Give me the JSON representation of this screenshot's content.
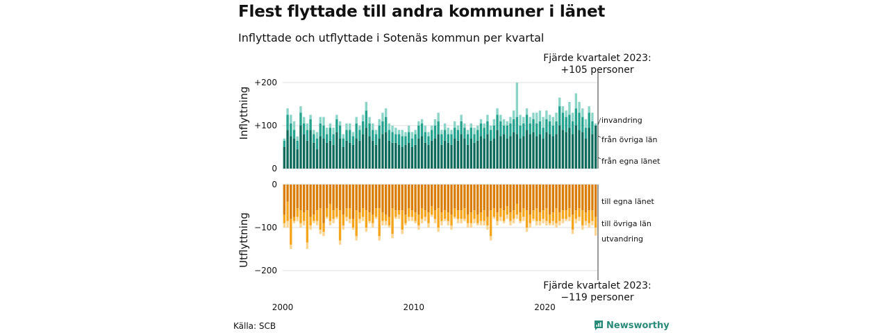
{
  "title": "Flest flyttade till andra kommuner i länet",
  "subtitle": "Inflyttade och utflyttade i Sotenäs kommun per kvartal",
  "annotation_top": {
    "line1": "Fjärde kvartalet 2023:",
    "line2": "+105 personer"
  },
  "annotation_bottom": {
    "line1": "Fjärde kvartalet 2023:",
    "line2": "−119 personer"
  },
  "source": "Källa: SCB",
  "brand": "Newsworthy",
  "colors": {
    "in_own": "#0e6b5c",
    "in_other": "#25a38f",
    "in_immig": "#8bd4c8",
    "out_own": "#d97d06",
    "out_other": "#f4a51c",
    "out_emig": "#fcd492",
    "grid": "#dddddd",
    "axis": "#333333"
  },
  "chart_data": {
    "type": "bar",
    "stacked": true,
    "x_start": "2000 Q1",
    "x_end": "2023 Q4",
    "x_tick_labels": [
      "2000",
      "2010",
      "2020"
    ],
    "upper": {
      "ylabel": "Inflyttning",
      "ylim": [
        0,
        200
      ],
      "ticks": [
        "0",
        "+100",
        "+200"
      ],
      "series": [
        {
          "name": "från egna länet",
          "color": "#0e6b5c",
          "values": [
            50,
            90,
            75,
            70,
            45,
            100,
            80,
            65,
            90,
            60,
            45,
            75,
            70,
            60,
            65,
            55,
            85,
            70,
            50,
            65,
            60,
            55,
            70,
            65,
            80,
            95,
            75,
            65,
            55,
            70,
            80,
            85,
            65,
            60,
            60,
            55,
            50,
            55,
            60,
            50,
            55,
            70,
            75,
            60,
            55,
            65,
            70,
            80,
            55,
            65,
            60,
            55,
            70,
            65,
            80,
            70,
            55,
            70,
            60,
            65,
            75,
            70,
            80,
            65,
            70,
            90,
            75,
            80,
            70,
            75,
            85,
            80,
            70,
            75,
            90,
            80,
            85,
            75,
            80,
            70,
            85,
            80,
            75,
            80,
            100,
            90,
            85,
            95,
            80,
            100,
            90,
            85,
            70,
            95,
            80,
            100
          ]
        },
        {
          "name": "från övriga län",
          "color": "#25a38f",
          "values": [
            15,
            35,
            30,
            20,
            20,
            30,
            25,
            25,
            25,
            20,
            25,
            30,
            30,
            20,
            30,
            25,
            30,
            30,
            20,
            25,
            30,
            20,
            35,
            25,
            30,
            40,
            30,
            25,
            25,
            30,
            30,
            35,
            25,
            25,
            20,
            25,
            25,
            20,
            25,
            20,
            25,
            30,
            30,
            25,
            20,
            25,
            30,
            30,
            25,
            25,
            20,
            25,
            25,
            25,
            30,
            25,
            25,
            25,
            20,
            25,
            30,
            25,
            30,
            25,
            30,
            35,
            35,
            20,
            30,
            30,
            30,
            40,
            30,
            30,
            35,
            25,
            30,
            30,
            30,
            25,
            30,
            30,
            25,
            30,
            45,
            40,
            35,
            30,
            30,
            40,
            40,
            35,
            25,
            35,
            30,
            0
          ]
        },
        {
          "name": "invandring",
          "color": "#8bd4c8",
          "values": [
            5,
            15,
            20,
            20,
            10,
            15,
            15,
            15,
            10,
            10,
            15,
            15,
            20,
            15,
            10,
            15,
            10,
            10,
            10,
            15,
            15,
            10,
            15,
            10,
            15,
            20,
            15,
            15,
            10,
            15,
            20,
            20,
            15,
            15,
            15,
            10,
            15,
            10,
            15,
            15,
            10,
            10,
            10,
            15,
            10,
            10,
            15,
            20,
            10,
            15,
            15,
            10,
            15,
            10,
            15,
            10,
            10,
            10,
            15,
            10,
            10,
            10,
            15,
            10,
            15,
            15,
            15,
            15,
            10,
            15,
            20,
            80,
            25,
            15,
            15,
            15,
            15,
            25,
            25,
            25,
            20,
            15,
            20,
            20,
            20,
            15,
            15,
            30,
            20,
            35,
            25,
            20,
            20,
            15,
            20,
            5
          ]
        }
      ]
    },
    "lower": {
      "ylabel": "Utflyttning",
      "ylim": [
        -200,
        0
      ],
      "ticks": [
        "0",
        "−100",
        "−200"
      ],
      "series": [
        {
          "name": "till egna länet",
          "color": "#d97d06",
          "values": [
            70,
            40,
            80,
            75,
            55,
            60,
            65,
            60,
            75,
            70,
            60,
            55,
            90,
            55,
            45,
            60,
            55,
            60,
            70,
            55,
            55,
            80,
            60,
            65,
            55,
            60,
            65,
            70,
            55,
            55,
            65,
            70,
            75,
            55,
            60,
            60,
            60,
            70,
            55,
            60,
            65,
            70,
            55,
            60,
            65,
            50,
            60,
            55,
            65,
            60,
            65,
            70,
            55,
            60,
            60,
            55,
            70,
            65,
            60,
            70,
            65,
            60,
            75,
            60,
            55,
            65,
            55,
            60,
            50,
            65,
            60,
            45,
            65,
            55,
            60,
            70,
            60,
            55,
            65,
            60,
            55,
            70,
            65,
            55,
            65,
            60,
            60,
            55,
            70,
            60,
            55,
            60,
            65,
            60,
            60,
            75
          ]
        },
        {
          "name": "till övriga län",
          "color": "#f4a51c",
          "values": [
            20,
            45,
            60,
            10,
            20,
            30,
            20,
            75,
            20,
            15,
            25,
            50,
            20,
            20,
            40,
            20,
            20,
            70,
            25,
            20,
            25,
            20,
            60,
            15,
            20,
            40,
            20,
            20,
            20,
            65,
            20,
            15,
            20,
            60,
            15,
            10,
            45,
            20,
            20,
            15,
            20,
            25,
            25,
            15,
            25,
            20,
            20,
            45,
            20,
            20,
            20,
            25,
            20,
            20,
            20,
            25,
            20,
            25,
            20,
            20,
            20,
            25,
            20,
            60,
            20,
            20,
            20,
            25,
            20,
            20,
            20,
            25,
            20,
            20,
            40,
            20,
            20,
            30,
            20,
            20,
            30,
            20,
            20,
            35,
            20,
            20,
            20,
            20,
            35,
            20,
            20,
            35,
            20,
            30,
            25,
            25
          ]
        },
        {
          "name": "utvandring",
          "color": "#fcd492",
          "values": [
            10,
            15,
            10,
            5,
            10,
            10,
            10,
            15,
            10,
            5,
            10,
            10,
            10,
            5,
            10,
            10,
            5,
            10,
            10,
            10,
            10,
            5,
            10,
            10,
            10,
            10,
            5,
            10,
            5,
            10,
            10,
            10,
            5,
            10,
            5,
            10,
            10,
            5,
            10,
            10,
            5,
            10,
            10,
            10,
            10,
            5,
            10,
            10,
            10,
            5,
            10,
            10,
            5,
            10,
            10,
            5,
            10,
            10,
            10,
            5,
            10,
            10,
            10,
            10,
            5,
            10,
            10,
            5,
            10,
            10,
            10,
            10,
            5,
            10,
            10,
            10,
            5,
            10,
            10,
            10,
            10,
            5,
            10,
            10,
            10,
            10,
            5,
            10,
            10,
            10,
            10,
            10,
            10,
            10,
            10,
            19
          ]
        }
      ]
    }
  }
}
